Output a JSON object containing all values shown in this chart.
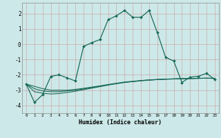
{
  "xlabel": "Humidex (Indice chaleur)",
  "x": [
    0,
    1,
    2,
    3,
    4,
    5,
    6,
    7,
    8,
    9,
    10,
    11,
    12,
    13,
    14,
    15,
    16,
    17,
    18,
    19,
    20,
    21,
    22,
    23
  ],
  "y_main": [
    -2.6,
    -3.8,
    -3.3,
    -2.1,
    -2.0,
    -2.2,
    -2.4,
    -0.15,
    0.1,
    0.3,
    1.6,
    1.85,
    2.2,
    1.75,
    1.75,
    2.2,
    0.75,
    -0.85,
    -1.1,
    -2.5,
    -2.15,
    -2.1,
    -1.9,
    -2.3
  ],
  "y_line1": [
    -2.6,
    -2.75,
    -2.9,
    -3.0,
    -3.0,
    -3.0,
    -2.95,
    -2.88,
    -2.8,
    -2.72,
    -2.63,
    -2.55,
    -2.47,
    -2.42,
    -2.37,
    -2.33,
    -2.3,
    -2.28,
    -2.26,
    -2.25,
    -2.24,
    -2.23,
    -2.22,
    -2.22
  ],
  "y_line2": [
    -2.6,
    -2.9,
    -3.05,
    -3.1,
    -3.1,
    -3.05,
    -3.0,
    -2.92,
    -2.83,
    -2.75,
    -2.65,
    -2.57,
    -2.49,
    -2.44,
    -2.38,
    -2.34,
    -2.31,
    -2.28,
    -2.27,
    -2.25,
    -2.24,
    -2.23,
    -2.22,
    -2.23
  ],
  "y_line3": [
    -2.6,
    -3.1,
    -3.2,
    -3.25,
    -3.22,
    -3.15,
    -3.07,
    -2.97,
    -2.87,
    -2.77,
    -2.67,
    -2.58,
    -2.5,
    -2.44,
    -2.39,
    -2.35,
    -2.31,
    -2.29,
    -2.27,
    -2.25,
    -2.24,
    -2.23,
    -2.22,
    -2.24
  ],
  "line_color": "#1a6b5a",
  "bg_color": "#cde8e8",
  "grid_color": "#aacccc",
  "ylim": [
    -4.5,
    2.7
  ],
  "xlim": [
    -0.5,
    23.5
  ]
}
